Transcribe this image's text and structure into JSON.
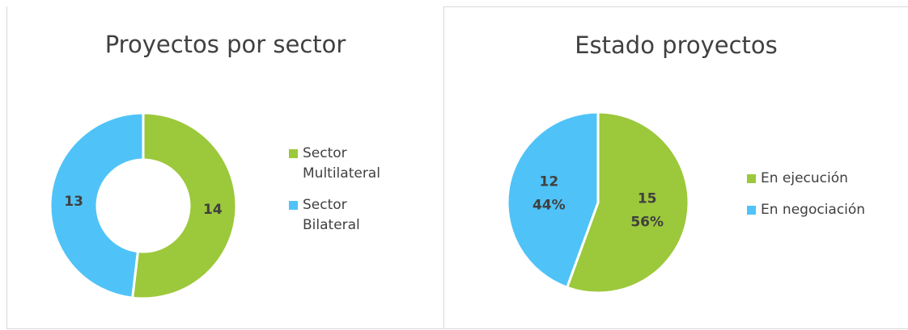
{
  "chart_data": [
    {
      "type": "donut",
      "title": "Proyectos por sector",
      "categories": [
        "Sector Multilateral",
        "Sector Bilateral"
      ],
      "values": [
        14,
        13
      ],
      "colors": [
        "#9cc83b",
        "#4fc3f7"
      ],
      "legend": "right"
    },
    {
      "type": "pie",
      "title": "Estado proyectos",
      "categories": [
        "En ejecución",
        "En negociación"
      ],
      "values": [
        15,
        12
      ],
      "percent_labels": [
        "56%",
        "44%"
      ],
      "colors": [
        "#9cc83b",
        "#4fc3f7"
      ],
      "legend": "right"
    }
  ]
}
